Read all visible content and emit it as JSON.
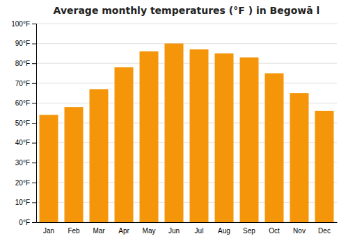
{
  "chart_data": {
    "type": "bar",
    "title": "Average monthly temperatures (°F ) in Begowā l",
    "categories": [
      "Jan",
      "Feb",
      "Mar",
      "Apr",
      "May",
      "Jun",
      "Jul",
      "Aug",
      "Sep",
      "Oct",
      "Nov",
      "Dec"
    ],
    "values": [
      54,
      58,
      67,
      78,
      86,
      90,
      87,
      85,
      83,
      75,
      65,
      56
    ],
    "color": "#F5960A",
    "ylim": [
      0,
      100
    ],
    "yticks": [
      {
        "value": 0,
        "label": "0°F"
      },
      {
        "value": 10,
        "label": "10°F"
      },
      {
        "value": 20,
        "label": "20°F"
      },
      {
        "value": 30,
        "label": "30°F"
      },
      {
        "value": 40,
        "label": "40°F"
      },
      {
        "value": 50,
        "label": "50°F"
      },
      {
        "value": 60,
        "label": "60°F"
      },
      {
        "value": 70,
        "label": "70°F"
      },
      {
        "value": 80,
        "label": "80°F"
      },
      {
        "value": 90,
        "label": "90°F"
      },
      {
        "value": 100,
        "label": "100°F"
      }
    ],
    "grid": true
  }
}
